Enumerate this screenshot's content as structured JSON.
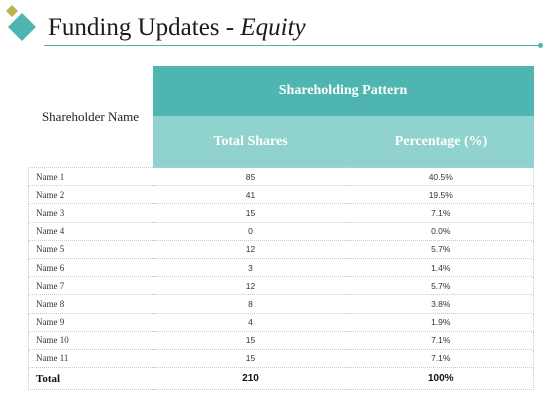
{
  "slide": {
    "title_main": "Funding Updates - ",
    "title_emph": "Equity"
  },
  "colors": {
    "accent": "#4fb5b1",
    "accent_light": "#8fd2ce",
    "logo_gold": "#b9b34a"
  },
  "table": {
    "header_name": "Shareholder Name",
    "header_group": "Shareholding Pattern",
    "header_shares": "Total Shares",
    "header_pct": "Percentage (%)",
    "rows": [
      {
        "name": "Name 1",
        "shares": "85",
        "pct": "40.5%"
      },
      {
        "name": "Name 2",
        "shares": "41",
        "pct": "19.5%"
      },
      {
        "name": "Name 3",
        "shares": "15",
        "pct": "7.1%"
      },
      {
        "name": "Name 4",
        "shares": "0",
        "pct": "0.0%"
      },
      {
        "name": "Name 5",
        "shares": "12",
        "pct": "5.7%"
      },
      {
        "name": "Name 6",
        "shares": "3",
        "pct": "1.4%"
      },
      {
        "name": "Name 7",
        "shares": "12",
        "pct": "5.7%"
      },
      {
        "name": "Name 8",
        "shares": "8",
        "pct": "3.8%"
      },
      {
        "name": "Name 9",
        "shares": "4",
        "pct": "1.9%"
      },
      {
        "name": "Name 10",
        "shares": "15",
        "pct": "7.1%"
      },
      {
        "name": "Name 11",
        "shares": "15",
        "pct": "7.1%"
      }
    ],
    "total": {
      "label": "Total",
      "shares": "210",
      "pct": "100%"
    }
  }
}
